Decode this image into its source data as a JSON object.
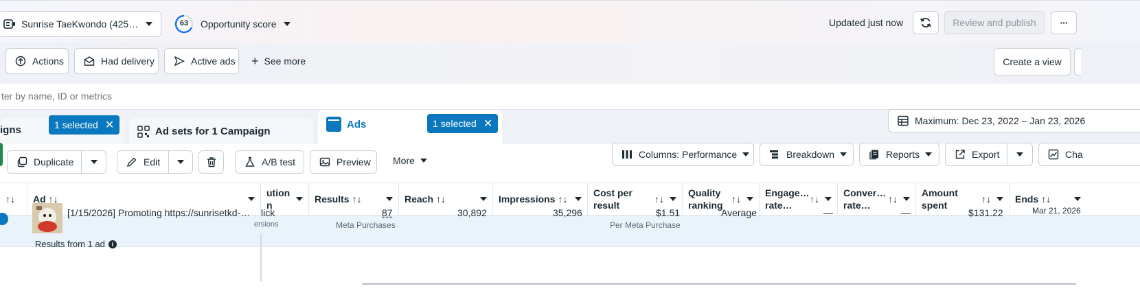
{
  "header": {
    "account_label": "Sunrise TaeKwondo (425…",
    "opportunity_score_value": "63",
    "opportunity_score_label": "Opportunity score",
    "updated_label": "Updated just now",
    "review_publish_label": "Review and publish",
    "more_label": "···"
  },
  "filters": {
    "actions_label": "Actions",
    "had_delivery_label": "Had delivery",
    "active_ads_label": "Active ads",
    "see_more_label": "See more",
    "create_view_label": "Create a view",
    "search_placeholder": "ter by name, ID or metrics"
  },
  "tabs": {
    "campaigns_label": "igns",
    "campaigns_selected": "1 selected",
    "adsets_label": "Ad sets for 1 Campaign",
    "ads_label": "Ads",
    "ads_selected": "1 selected",
    "date_range": "Maximum: Dec 23, 2022 – Jan 23, 2026"
  },
  "toolbar": {
    "duplicate_label": "Duplicate",
    "edit_label": "Edit",
    "ab_test_label": "A/B test",
    "preview_label": "Preview",
    "more_label": "More",
    "columns_label": "Columns: Performance",
    "breakdown_label": "Breakdown",
    "reports_label": "Reports",
    "export_label": "Export",
    "charts_label": "Cha"
  },
  "table": {
    "columns": {
      "sort_glyph": "↑↓",
      "ad": "Ad",
      "attribution_1": "ution",
      "attribution_2": "n",
      "results": "Results",
      "reach": "Reach",
      "impressions": "Impressions",
      "cost_per_result_1": "Cost per",
      "cost_per_result_2": "result",
      "quality_1": "Quality",
      "quality_2": "ranking",
      "engagement_1": "Engage…",
      "engagement_2": "rate…",
      "conversion_1": "Conver…",
      "conversion_2": "rate…",
      "amount_1": "Amount",
      "amount_2": "spent",
      "ends": "Ends"
    },
    "row": {
      "ad_name": "[1/15/2026] Promoting https://sunrisetkd-…",
      "attribution": "lick",
      "attribution_sub": "ersions",
      "results": "87",
      "results_sub": "Meta Purchases",
      "reach": "30,892",
      "impressions": "35,296",
      "cost_per_result": "$1.51",
      "cost_sub": "Per Meta Purchase",
      "quality": "Average",
      "engagement": "—",
      "conversion": "—",
      "amount_spent": "$131.22",
      "ends": "Mar 21, 2026"
    },
    "footer": "Results from 1 ad"
  },
  "colors": {
    "accent": "#0a78be",
    "row_highlight": "#eaf2fb",
    "green_edge": "#1e8a4c"
  }
}
